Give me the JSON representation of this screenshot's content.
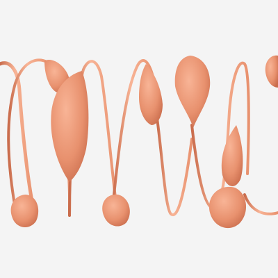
{
  "scene": {
    "background_color": "#f4f4f4",
    "tube_color": "#e8916e",
    "tube_shadow_color": "#c96c4c",
    "tube_highlight_color": "#f8b496"
  }
}
